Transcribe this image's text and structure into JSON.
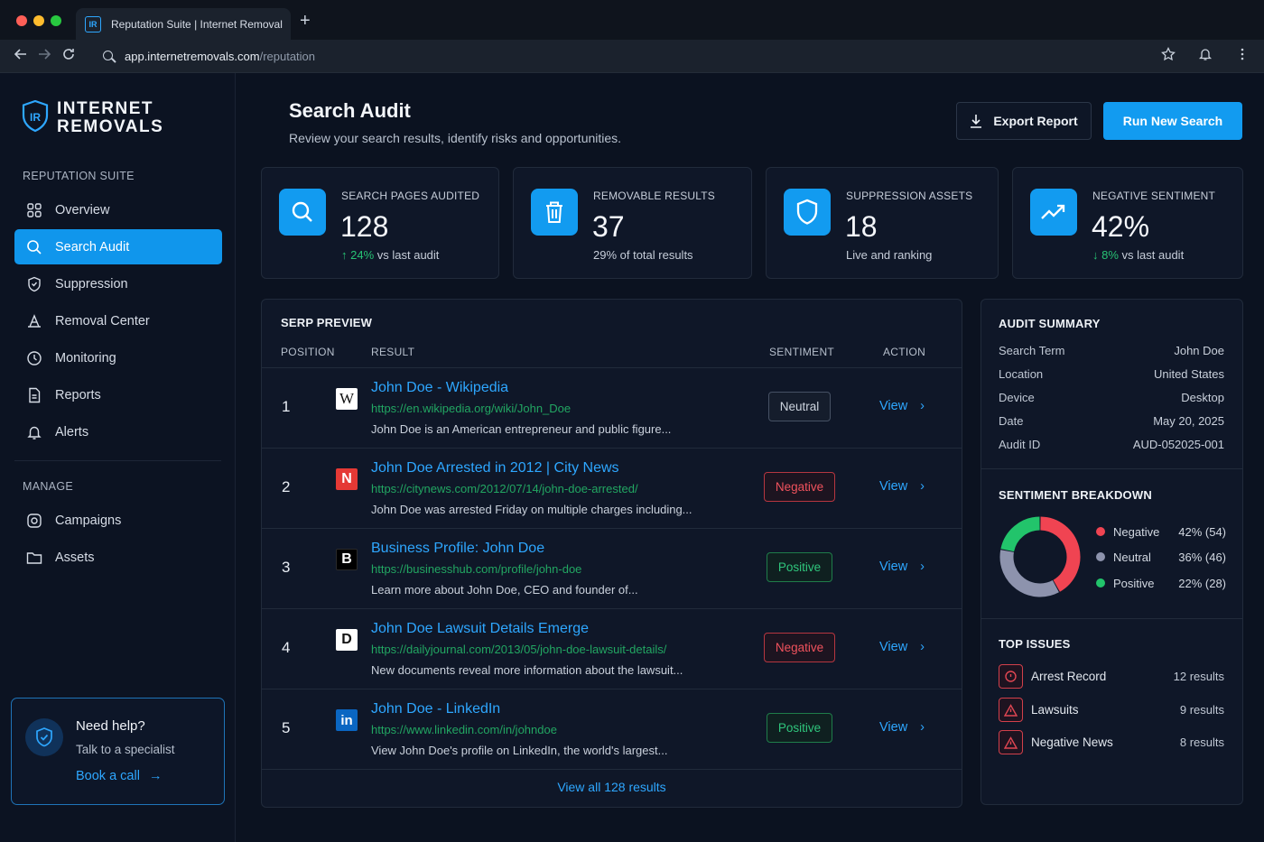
{
  "browser": {
    "tab_title": "Reputation Suite | Internet Removals",
    "tab_favicon": "IR",
    "url_host": "app.internetremovals.com",
    "url_path": "/reputation"
  },
  "brand": {
    "mark": "IR",
    "line1": "INTERNET",
    "line2": "REMOVALS"
  },
  "sidebar": {
    "section_reputation": "REPUTATION SUITE",
    "items": [
      {
        "label": "Overview",
        "icon": "grid-icon"
      },
      {
        "label": "Search Audit",
        "icon": "search-icon",
        "active": true
      },
      {
        "label": "Suppression",
        "icon": "shield-icon"
      },
      {
        "label": "Removal Center",
        "icon": "eraser-icon"
      },
      {
        "label": "Monitoring",
        "icon": "clock-icon"
      },
      {
        "label": "Reports",
        "icon": "document-icon"
      },
      {
        "label": "Alerts",
        "icon": "bell-icon"
      }
    ],
    "section_manage": "MANAGE",
    "manage_items": [
      {
        "label": "Campaigns",
        "icon": "target-icon"
      },
      {
        "label": "Assets",
        "icon": "folder-icon"
      }
    ],
    "help": {
      "title": "Need help?",
      "subtitle": "Talk to a specialist",
      "link": "Book a call"
    }
  },
  "header": {
    "title": "Search Audit",
    "subtitle": "Review your search results, identify risks and opportunities.",
    "export_label": "Export Report",
    "run_label": "Run New Search"
  },
  "stats": [
    {
      "label": "SEARCH PAGES AUDITED",
      "value": "128",
      "change": "24%",
      "note": " vs last audit",
      "direction": "up"
    },
    {
      "label": "REMOVABLE RESULTS",
      "value": "37",
      "note": "29% of total results"
    },
    {
      "label": "SUPPRESSION ASSETS",
      "value": "18",
      "note": "Live and ranking"
    },
    {
      "label": "NEGATIVE SENTIMENT",
      "value": "42%",
      "change": "8%",
      "note": " vs last audit",
      "direction": "down"
    }
  ],
  "serp": {
    "title": "SERP PREVIEW",
    "columns": {
      "position": "POSITION",
      "result": "RESULT",
      "sentiment": "SENTIMENT",
      "action": "ACTION"
    },
    "rows": [
      {
        "position": "1",
        "favicon": "W",
        "title": "John Doe - Wikipedia",
        "url": "https://en.wikipedia.org/wiki/John_Doe",
        "description": "John Doe is an American entrepreneur and public figure...",
        "sentiment": "Neutral",
        "action": "View"
      },
      {
        "position": "2",
        "favicon": "N",
        "title": "John Doe Arrested in 2012 | City News",
        "url": "https://citynews.com/2012/07/14/john-doe-arrested/",
        "description": "John Doe was arrested Friday on multiple charges including...",
        "sentiment": "Negative",
        "action": "View"
      },
      {
        "position": "3",
        "favicon": "B",
        "title": "Business Profile: John Doe",
        "url": "https://businesshub.com/profile/john-doe",
        "description": "Learn more about John Doe, CEO and founder of...",
        "sentiment": "Positive",
        "action": "View"
      },
      {
        "position": "4",
        "favicon": "D",
        "title": "John Doe Lawsuit Details Emerge",
        "url": "https://dailyjournal.com/2013/05/john-doe-lawsuit-details/",
        "description": "New documents reveal more information about the lawsuit...",
        "sentiment": "Negative",
        "action": "View"
      },
      {
        "position": "5",
        "favicon": "in",
        "title": "John Doe - LinkedIn",
        "url": "https://www.linkedin.com/in/johndoe",
        "description": "View John Doe's profile on LinkedIn, the world's largest...",
        "sentiment": "Positive",
        "action": "View"
      }
    ],
    "view_all": "View all 128 results"
  },
  "audit_summary": {
    "title": "AUDIT SUMMARY",
    "fields": [
      {
        "key": "Search Term",
        "value": "John Doe"
      },
      {
        "key": "Location",
        "value": "United States"
      },
      {
        "key": "Device",
        "value": "Desktop"
      },
      {
        "key": "Date",
        "value": "May 20, 2025"
      },
      {
        "key": "Audit ID",
        "value": "AUD-052025-001"
      }
    ]
  },
  "sentiment_breakdown": {
    "title": "SENTIMENT BREAKDOWN",
    "items": [
      {
        "name": "Negative",
        "value": "42% (54)",
        "percent": 42,
        "color": "#f04452"
      },
      {
        "name": "Neutral",
        "value": "36% (46)",
        "percent": 36,
        "color": "#8d93ad"
      },
      {
        "name": "Positive",
        "value": "22% (28)",
        "percent": 22,
        "color": "#22c46b"
      }
    ]
  },
  "top_issues": {
    "title": "TOP ISSUES",
    "items": [
      {
        "name": "Arrest Record",
        "count": "12 results",
        "icon": "siren-icon"
      },
      {
        "name": "Lawsuits",
        "count": "9 results",
        "icon": "warning-icon"
      },
      {
        "name": "Negative News",
        "count": "8 results",
        "icon": "warning-icon"
      }
    ]
  },
  "colors": {
    "accent": "#129bf0",
    "negative": "#f04452",
    "positive": "#22c46b",
    "background": "#0b1220"
  }
}
